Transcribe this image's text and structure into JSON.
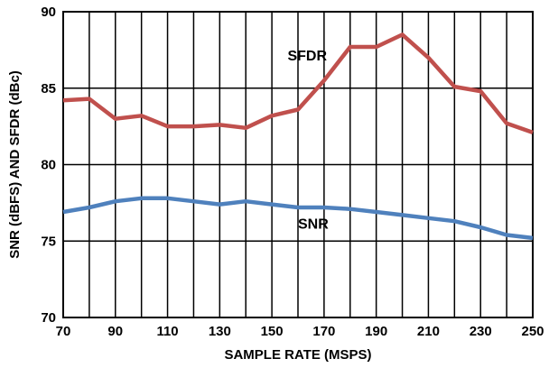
{
  "chart_data": {
    "type": "line",
    "xlabel": "SAMPLE RATE (MSPS)",
    "ylabel": "SNR (dBFS) AND SFDR (dBc)",
    "xlim": [
      70,
      250
    ],
    "ylim": [
      70,
      90
    ],
    "x_ticks": [
      70,
      90,
      110,
      130,
      150,
      170,
      190,
      210,
      230,
      250
    ],
    "y_ticks": [
      70,
      75,
      80,
      85,
      90
    ],
    "x_gridlines": [
      70,
      80,
      90,
      100,
      110,
      120,
      130,
      140,
      150,
      160,
      170,
      180,
      190,
      200,
      210,
      220,
      230,
      240,
      250
    ],
    "y_gridlines": [
      70,
      75,
      80,
      85,
      90
    ],
    "grid": true,
    "legend": "none",
    "x_tick_labels": [
      "70",
      "90",
      "110",
      "130",
      "150",
      "170",
      "190",
      "210",
      "230",
      "250"
    ],
    "y_tick_labels": [
      "70",
      "75",
      "80",
      "85",
      "90"
    ],
    "x": [
      70,
      80,
      90,
      100,
      110,
      120,
      130,
      140,
      150,
      160,
      170,
      180,
      190,
      200,
      210,
      220,
      230,
      240,
      250
    ],
    "series": [
      {
        "name": "SFDR",
        "color": "#c0504d",
        "values": [
          84.2,
          84.3,
          83.0,
          83.2,
          82.5,
          82.5,
          82.6,
          82.4,
          83.2,
          83.6,
          85.5,
          87.7,
          87.7,
          88.5,
          87.0,
          85.1,
          84.8,
          82.7,
          82.1
        ]
      },
      {
        "name": "SNR",
        "color": "#4f81bd",
        "values": [
          76.9,
          77.2,
          77.6,
          77.8,
          77.8,
          77.6,
          77.4,
          77.6,
          77.4,
          77.2,
          77.2,
          77.1,
          76.9,
          76.7,
          76.5,
          76.3,
          75.9,
          75.4,
          75.2
        ]
      }
    ],
    "annotations": [
      {
        "text": "SFDR",
        "x": 156,
        "y": 86.8
      },
      {
        "text": "SNR",
        "x": 160,
        "y": 75.8
      }
    ]
  }
}
